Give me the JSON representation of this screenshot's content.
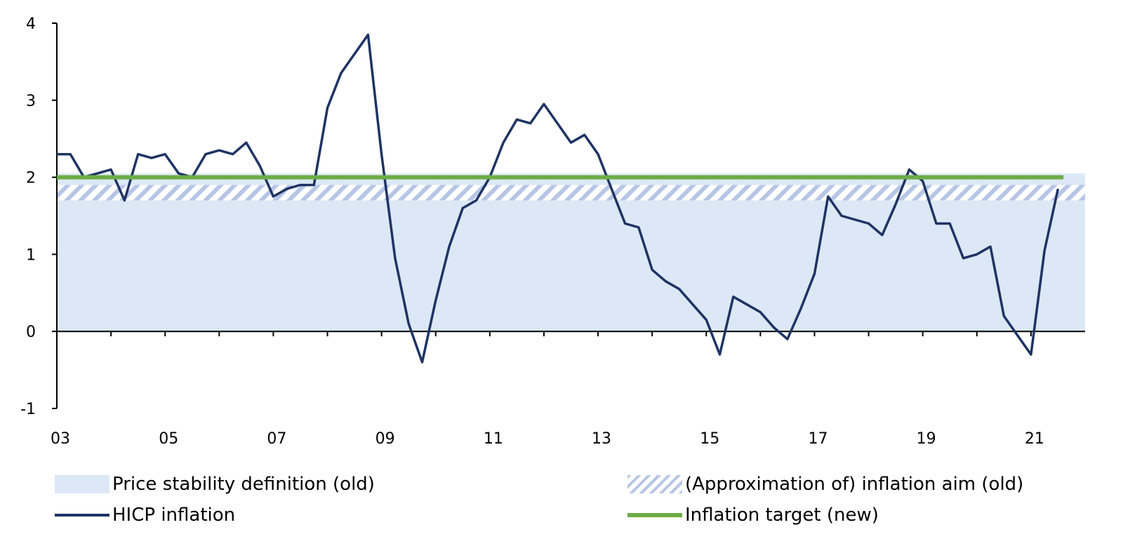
{
  "colors": {
    "price_stability_fill": "#dce8f5",
    "hatch": "#b7c6e6",
    "hicp_line": "#1f3464",
    "target_line": "#6cad45",
    "axis": "#000000"
  },
  "legend": {
    "price_stability": "Price stability definition (old)",
    "inflation_aim": "(Approximation of) inflation aim (old)",
    "hicp": "HICP inflation",
    "target": "Inflation target (new)"
  },
  "chart_data": {
    "type": "line",
    "title": "",
    "xlabel": "",
    "ylabel": "",
    "xlim": [
      2003.0,
      2022.0
    ],
    "ylim": [
      -1,
      4
    ],
    "grid": false,
    "legend_position": "bottom",
    "y_ticks": [
      {
        "value": 4,
        "label": "4"
      },
      {
        "value": 3,
        "label": "3"
      },
      {
        "value": 2,
        "label": "2"
      },
      {
        "value": 1,
        "label": "1"
      },
      {
        "value": 0,
        "label": "0"
      },
      {
        "value": -1,
        "label": "-1"
      }
    ],
    "x_ticks": [
      {
        "value": 2003,
        "label": "03"
      },
      {
        "value": 2005,
        "label": "05"
      },
      {
        "value": 2007,
        "label": "07"
      },
      {
        "value": 2009,
        "label": "09"
      },
      {
        "value": 2011,
        "label": "11"
      },
      {
        "value": 2013,
        "label": "13"
      },
      {
        "value": 2015,
        "label": "15"
      },
      {
        "value": 2017,
        "label": "17"
      },
      {
        "value": 2019,
        "label": "19"
      },
      {
        "value": 2021,
        "label": "21"
      }
    ],
    "x_minor_ticks": [
      2004,
      2006,
      2008,
      2010,
      2012,
      2014,
      2016,
      2018,
      2020
    ],
    "bands": [
      {
        "name": "Price stability definition (old)",
        "y_from": 0,
        "y_to": 2.05,
        "style": "fill"
      },
      {
        "name": "(Approximation of) inflation aim (old)",
        "y_from": 1.7,
        "y_to": 1.9,
        "style": "hatch"
      }
    ],
    "series": [
      {
        "name": "HICP inflation",
        "x": [
          2003.0,
          2003.25,
          2003.5,
          2003.75,
          2004.0,
          2004.25,
          2004.5,
          2004.75,
          2005.0,
          2005.25,
          2005.5,
          2005.75,
          2006.0,
          2006.25,
          2006.5,
          2006.75,
          2007.0,
          2007.25,
          2007.5,
          2007.75,
          2008.0,
          2008.25,
          2008.5,
          2008.75,
          2009.0,
          2009.25,
          2009.5,
          2009.75,
          2010.0,
          2010.25,
          2010.5,
          2010.75,
          2011.0,
          2011.25,
          2011.5,
          2011.75,
          2012.0,
          2012.25,
          2012.5,
          2012.75,
          2013.0,
          2013.25,
          2013.5,
          2013.75,
          2014.0,
          2014.25,
          2014.5,
          2014.75,
          2015.0,
          2015.25,
          2015.5,
          2015.75,
          2016.0,
          2016.25,
          2016.5,
          2016.75,
          2017.0,
          2017.25,
          2017.5,
          2017.75,
          2018.0,
          2018.25,
          2018.5,
          2018.75,
          2019.0,
          2019.25,
          2019.5,
          2019.75,
          2020.0,
          2020.25,
          2020.5,
          2020.75,
          2021.0,
          2021.25,
          2021.5
        ],
        "values": [
          2.3,
          2.3,
          2.0,
          2.05,
          2.1,
          1.7,
          2.3,
          2.25,
          2.3,
          2.05,
          2.0,
          2.3,
          2.35,
          2.3,
          2.45,
          2.15,
          1.75,
          1.85,
          1.9,
          1.9,
          2.9,
          3.35,
          3.6,
          3.85,
          2.3,
          0.95,
          0.1,
          -0.4,
          0.4,
          1.1,
          1.6,
          1.7,
          2.0,
          2.45,
          2.75,
          2.7,
          2.95,
          2.7,
          2.45,
          2.55,
          2.3,
          1.85,
          1.4,
          1.35,
          0.8,
          0.65,
          0.55,
          0.35,
          0.15,
          -0.3,
          0.45,
          0.35,
          0.25,
          0.05,
          -0.1,
          0.3,
          0.75,
          1.75,
          1.5,
          1.45,
          1.4,
          1.25,
          1.65,
          2.1,
          1.95,
          1.4,
          1.4,
          0.95,
          1.0,
          1.1,
          0.2,
          -0.05,
          -0.3,
          1.05,
          1.85
        ],
        "color": "#1f3464"
      },
      {
        "name": "Inflation target (new)",
        "x": [
          2003.0,
          2021.6
        ],
        "values": [
          2.0,
          2.0
        ],
        "color": "#6cad45"
      }
    ]
  }
}
